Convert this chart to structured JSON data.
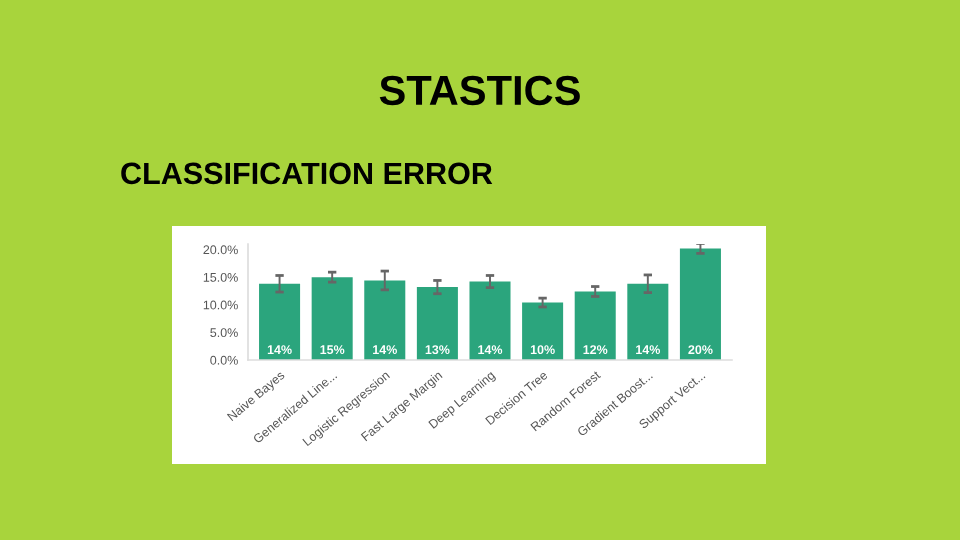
{
  "chart_data": {
    "type": "bar",
    "title": "STASTICS",
    "subtitle": "CLASSIFICATION ERROR",
    "categories": [
      "Naive Bayes",
      "Generalized Line...",
      "Logistic Regression",
      "Fast Large Margin",
      "Deep Learning",
      "Decision Tree",
      "Random Forest",
      "Gradient Boost...",
      "Support Vect..."
    ],
    "values": [
      13.8,
      15.0,
      14.4,
      13.2,
      14.2,
      10.4,
      12.4,
      13.8,
      20.2
    ],
    "errors": [
      1.5,
      0.9,
      1.7,
      1.2,
      1.1,
      0.8,
      0.9,
      1.6,
      0.9
    ],
    "value_labels": [
      "14%",
      "15%",
      "14%",
      "13%",
      "14%",
      "10%",
      "12%",
      "14%",
      "20%"
    ],
    "color": "#2ba57d",
    "ylim": [
      0,
      21
    ],
    "yticks": [
      {
        "value": 0,
        "label": "0.0%"
      },
      {
        "value": 5,
        "label": "5.0%"
      },
      {
        "value": 10,
        "label": "10.0%"
      },
      {
        "value": 15,
        "label": "15.0%"
      },
      {
        "value": 20,
        "label": "20.0%"
      }
    ],
    "grid": false
  }
}
